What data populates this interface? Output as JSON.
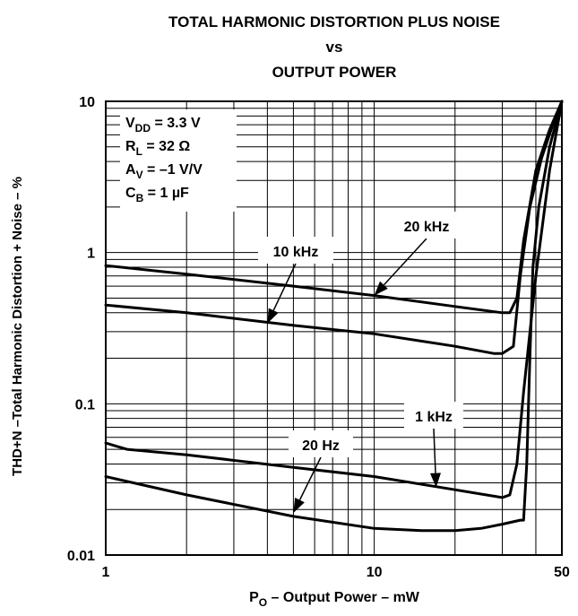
{
  "chart_data": {
    "type": "line",
    "title_lines": [
      "TOTAL HARMONIC DISTORTION PLUS NOISE",
      "vs",
      "OUTPUT POWER"
    ],
    "xlabel": {
      "main": "P",
      "sub": "O",
      "rest": " – Output Power – mW"
    },
    "ylabel": "THD+N –Total Harmonic Distortion + Noise – %",
    "x_scale": "log",
    "y_scale": "log",
    "xlim": [
      1,
      50
    ],
    "ylim": [
      0.01,
      10
    ],
    "x_ticks": [
      {
        "value": 1,
        "label": "1"
      },
      {
        "value": 10,
        "label": "10"
      },
      {
        "value": 50,
        "label": "50"
      }
    ],
    "y_ticks": [
      {
        "value": 10,
        "label": "10"
      },
      {
        "value": 1,
        "label": "1"
      },
      {
        "value": 0.1,
        "label": "0.1"
      },
      {
        "value": 0.01,
        "label": "0.01"
      }
    ],
    "grid": true,
    "conditions": [
      {
        "main": "V",
        "sub": "DD",
        "rest": " = 3.3 V"
      },
      {
        "main": "R",
        "sub": "L",
        "rest": " = 32 Ω"
      },
      {
        "main": "A",
        "sub": "V",
        "rest": " = –1 V/V"
      },
      {
        "main": "C",
        "sub": "B",
        "rest": " = 1 µF"
      }
    ],
    "series": [
      {
        "name": "20 kHz",
        "points": [
          [
            1,
            0.82
          ],
          [
            2,
            0.72
          ],
          [
            5,
            0.6
          ],
          [
            10,
            0.52
          ],
          [
            20,
            0.44
          ],
          [
            30,
            0.4
          ],
          [
            32,
            0.4
          ],
          [
            34,
            0.5
          ],
          [
            36,
            1.2
          ],
          [
            40,
            3.5
          ],
          [
            45,
            6.5
          ],
          [
            50,
            10
          ]
        ]
      },
      {
        "name": "10 kHz",
        "points": [
          [
            1,
            0.45
          ],
          [
            2,
            0.4
          ],
          [
            5,
            0.33
          ],
          [
            10,
            0.29
          ],
          [
            20,
            0.24
          ],
          [
            28,
            0.215
          ],
          [
            30,
            0.215
          ],
          [
            33,
            0.24
          ],
          [
            35,
            0.7
          ],
          [
            38,
            2.0
          ],
          [
            42,
            4.2
          ],
          [
            46,
            6.8
          ],
          [
            50,
            10
          ]
        ]
      },
      {
        "name": "1 kHz",
        "points": [
          [
            1,
            0.055
          ],
          [
            1.2,
            0.05
          ],
          [
            2,
            0.046
          ],
          [
            5,
            0.038
          ],
          [
            10,
            0.033
          ],
          [
            20,
            0.027
          ],
          [
            30,
            0.024
          ],
          [
            32,
            0.025
          ],
          [
            34,
            0.04
          ],
          [
            36,
            0.12
          ],
          [
            40,
            0.7
          ],
          [
            45,
            3.5
          ],
          [
            50,
            10
          ]
        ]
      },
      {
        "name": "20 Hz",
        "points": [
          [
            1,
            0.033
          ],
          [
            2,
            0.025
          ],
          [
            5,
            0.018
          ],
          [
            10,
            0.015
          ],
          [
            15,
            0.0145
          ],
          [
            20,
            0.0145
          ],
          [
            25,
            0.015
          ],
          [
            30,
            0.016
          ],
          [
            35,
            0.017
          ],
          [
            36,
            0.017
          ],
          [
            37,
            0.04
          ],
          [
            38,
            0.2
          ],
          [
            39,
            0.8
          ],
          [
            41,
            2.0
          ],
          [
            45,
            5.0
          ],
          [
            50,
            10
          ]
        ]
      }
    ],
    "annotations": [
      {
        "label": "20 kHz",
        "target": [
          10,
          0.52
        ]
      },
      {
        "label": "10 kHz",
        "target": [
          4,
          0.34
        ]
      },
      {
        "label": "1 kHz",
        "target": [
          17,
          0.028
        ]
      },
      {
        "label": "20 Hz",
        "target": [
          5,
          0.019
        ]
      }
    ]
  }
}
